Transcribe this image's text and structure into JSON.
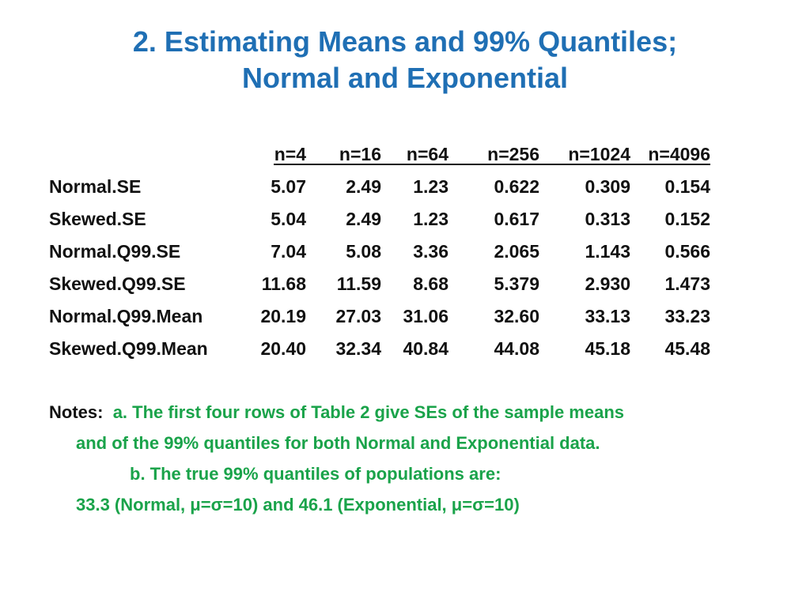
{
  "title": {
    "line1": "2. Estimating Means and 99% Quantiles;",
    "line2": "Normal and Exponential"
  },
  "table": {
    "columns": [
      "n=4",
      "n=16",
      "n=64",
      "n=256",
      "n=1024",
      "n=4096"
    ],
    "rows": [
      {
        "label": "Normal.SE",
        "values": [
          "5.07",
          "2.49",
          "1.23",
          "0.622",
          "0.309",
          "0.154"
        ]
      },
      {
        "label": "Skewed.SE",
        "values": [
          "5.04",
          "2.49",
          "1.23",
          "0.617",
          "0.313",
          "0.152"
        ]
      },
      {
        "label": "Normal.Q99.SE",
        "values": [
          "7.04",
          "5.08",
          "3.36",
          "2.065",
          "1.143",
          "0.566"
        ]
      },
      {
        "label": "Skewed.Q99.SE",
        "values": [
          "11.68",
          "11.59",
          "8.68",
          "5.379",
          "2.930",
          "1.473"
        ]
      },
      {
        "label": "Normal.Q99.Mean",
        "values": [
          "20.19",
          "27.03",
          "31.06",
          "32.60",
          "33.13",
          "33.23"
        ]
      },
      {
        "label": "Skewed.Q99.Mean",
        "values": [
          "20.40",
          "32.34",
          "40.84",
          "44.08",
          "45.18",
          "45.48"
        ]
      }
    ]
  },
  "notes": {
    "label": "Notes:",
    "line1": "a. The first four rows of Table 2 give SEs of the sample means",
    "line2": "and of the 99% quantiles for both Normal and Exponential data.",
    "line3": "b. The true 99% quantiles of populations are:",
    "line4": "33.3 (Normal, μ=σ=10) and 46.1 (Exponential, μ=σ=10)"
  }
}
